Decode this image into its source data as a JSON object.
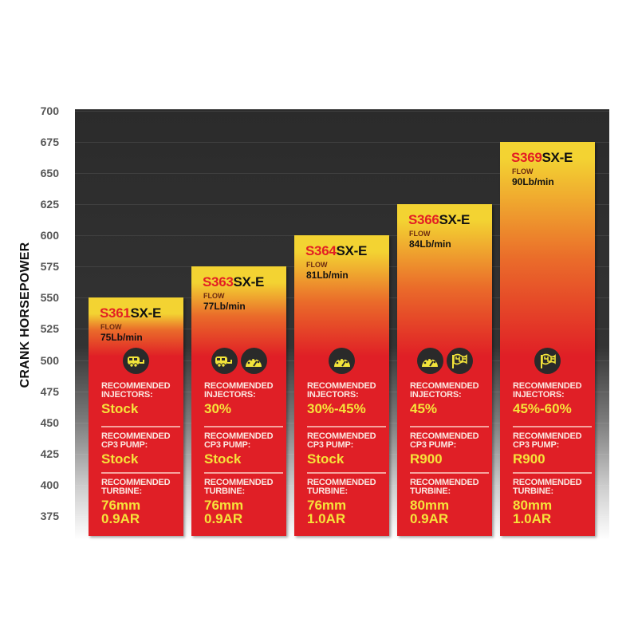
{
  "chart_data": {
    "type": "bar",
    "ylabel": "CRANK HORSEPOWER",
    "xlabel": "",
    "ylim": [
      375,
      700
    ],
    "yticks": [
      700,
      675,
      650,
      625,
      600,
      575,
      550,
      525,
      500,
      475,
      450,
      425,
      400,
      375
    ],
    "grid": true,
    "categories": [
      "S361SX-E",
      "S363SX-E",
      "S364SX-E",
      "S366SX-E",
      "S369SX-E"
    ],
    "values": [
      550,
      575,
      600,
      625,
      675
    ],
    "bars": [
      {
        "model_num": "S361",
        "model_suffix": "SX-E",
        "flow_label": "FLOW",
        "flow": "75Lb/min",
        "icons": [
          "rv-trailer-icon"
        ],
        "injectors_label": "RECOMMENDED INJECTORS:",
        "injectors": "Stock",
        "pump_label": "RECOMMENDED CP3 PUMP:",
        "pump": "Stock",
        "turbine_label": "RECOMMENDED TURBINE:",
        "turbine_size": "76mm",
        "turbine_ar": "0.9AR"
      },
      {
        "model_num": "S363",
        "model_suffix": "SX-E",
        "flow_label": "FLOW",
        "flow": "77Lb/min",
        "icons": [
          "rv-trailer-icon",
          "gauge-icon"
        ],
        "injectors_label": "RECOMMENDED INJECTORS:",
        "injectors": "30%",
        "pump_label": "RECOMMENDED CP3 PUMP:",
        "pump": "Stock",
        "turbine_label": "RECOMMENDED TURBINE:",
        "turbine_size": "76mm",
        "turbine_ar": "0.9AR"
      },
      {
        "model_num": "S364",
        "model_suffix": "SX-E",
        "flow_label": "FLOW",
        "flow": "81Lb/min",
        "icons": [
          "gauge-icon"
        ],
        "injectors_label": "RECOMMENDED INJECTORS:",
        "injectors": "30%-45%",
        "pump_label": "RECOMMENDED CP3 PUMP:",
        "pump": "Stock",
        "turbine_label": "RECOMMENDED TURBINE:",
        "turbine_size": "76mm",
        "turbine_ar": "1.0AR"
      },
      {
        "model_num": "S366",
        "model_suffix": "SX-E",
        "flow_label": "FLOW",
        "flow": "84Lb/min",
        "icons": [
          "gauge-icon",
          "checkered-flag-icon"
        ],
        "injectors_label": "RECOMMENDED INJECTORS:",
        "injectors": "45%",
        "pump_label": "RECOMMENDED CP3 PUMP:",
        "pump": "R900",
        "turbine_label": "RECOMMENDED TURBINE:",
        "turbine_size": "80mm",
        "turbine_ar": "0.9AR"
      },
      {
        "model_num": "S369",
        "model_suffix": "SX-E",
        "flow_label": "FLOW",
        "flow": "90Lb/min",
        "icons": [
          "checkered-flag-icon"
        ],
        "injectors_label": "RECOMMENDED INJECTORS:",
        "injectors": "45%-60%",
        "pump_label": "RECOMMENDED CP3 PUMP:",
        "pump": "R900",
        "turbine_label": "RECOMMENDED TURBINE:",
        "turbine_size": "80mm",
        "turbine_ar": "1.0AR"
      }
    ],
    "colors": {
      "bar_top": "#f3d332",
      "bar_mid": "#ea6b2a",
      "bar_bottom": "#e01f26",
      "model_num": "#e31e24",
      "value_text": "#f6e33a",
      "icon_fill": "#f2e43a",
      "background": "#2e2e2e"
    }
  }
}
